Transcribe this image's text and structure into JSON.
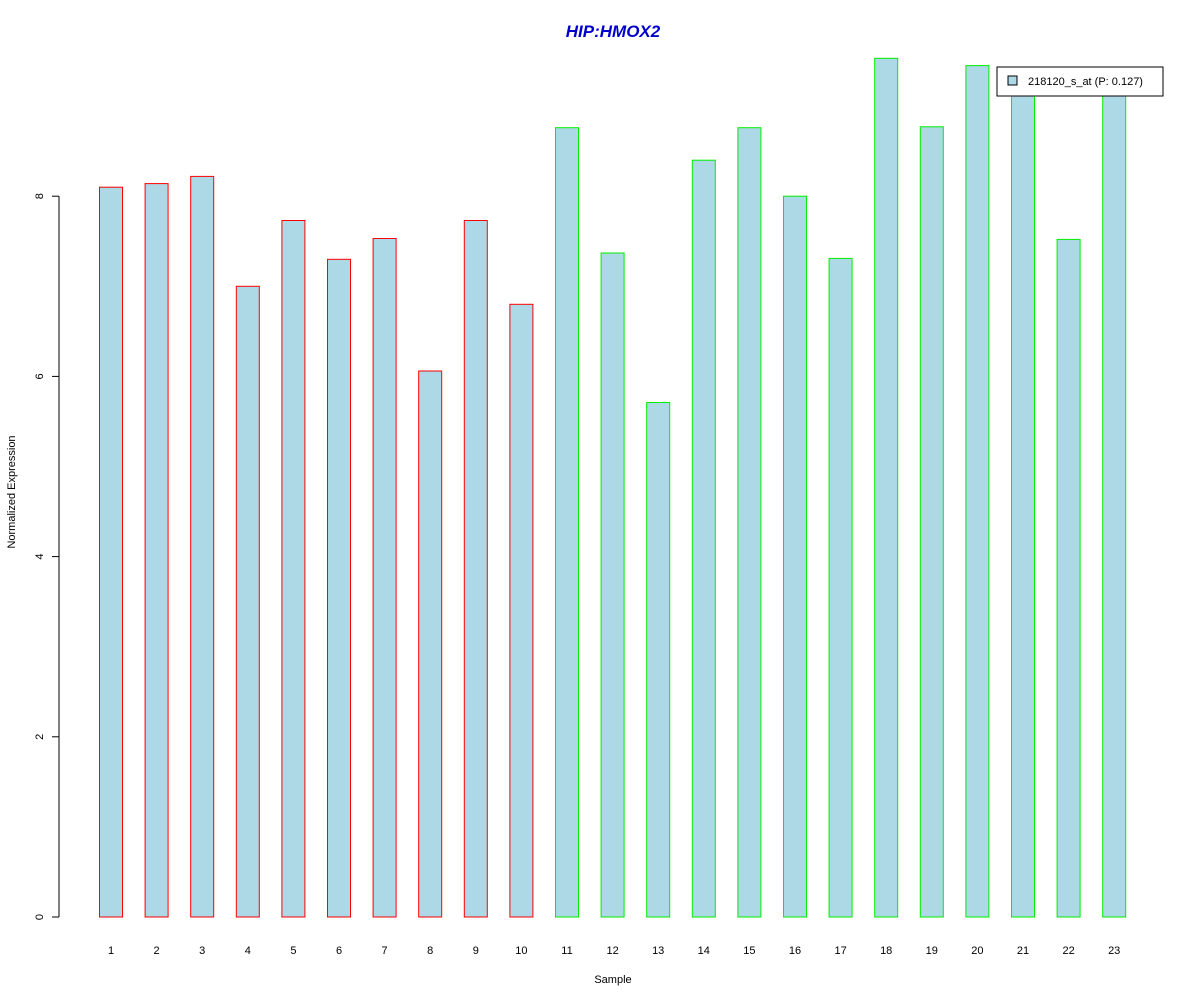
{
  "chart_data": {
    "type": "bar",
    "title": "HIP:HMOX2",
    "xlabel": "Sample",
    "ylabel": "Normalized Expression",
    "categories": [
      "1",
      "2",
      "3",
      "4",
      "5",
      "6",
      "7",
      "8",
      "9",
      "10",
      "11",
      "12",
      "13",
      "14",
      "15",
      "16",
      "17",
      "18",
      "19",
      "20",
      "21",
      "22",
      "23"
    ],
    "series": [
      {
        "name": "218120_s_at (P: 0.127)",
        "values": [
          8.1,
          8.14,
          8.22,
          7.0,
          7.73,
          7.3,
          7.53,
          6.06,
          7.73,
          6.8,
          8.76,
          7.37,
          5.71,
          8.4,
          8.76,
          8.0,
          7.31,
          9.53,
          8.77,
          9.45,
          9.26,
          7.52,
          9.26
        ]
      }
    ],
    "groups": [
      {
        "samples": [
          "1",
          "2",
          "3",
          "4",
          "5",
          "6",
          "7",
          "8",
          "9",
          "10"
        ],
        "border_color": "#ff0000"
      },
      {
        "samples": [
          "11",
          "12",
          "13",
          "14",
          "15",
          "16",
          "17",
          "18",
          "19",
          "20",
          "21",
          "22",
          "23"
        ],
        "border_color": "#00ee00"
      }
    ],
    "yticks": [
      "0",
      "2",
      "4",
      "6",
      "8"
    ],
    "ylim": [
      0,
      9.53
    ],
    "legend_position": "top-right",
    "colors": {
      "bar_fill": "#add8e6",
      "title": "#0000cd",
      "axis": "#000000"
    }
  }
}
